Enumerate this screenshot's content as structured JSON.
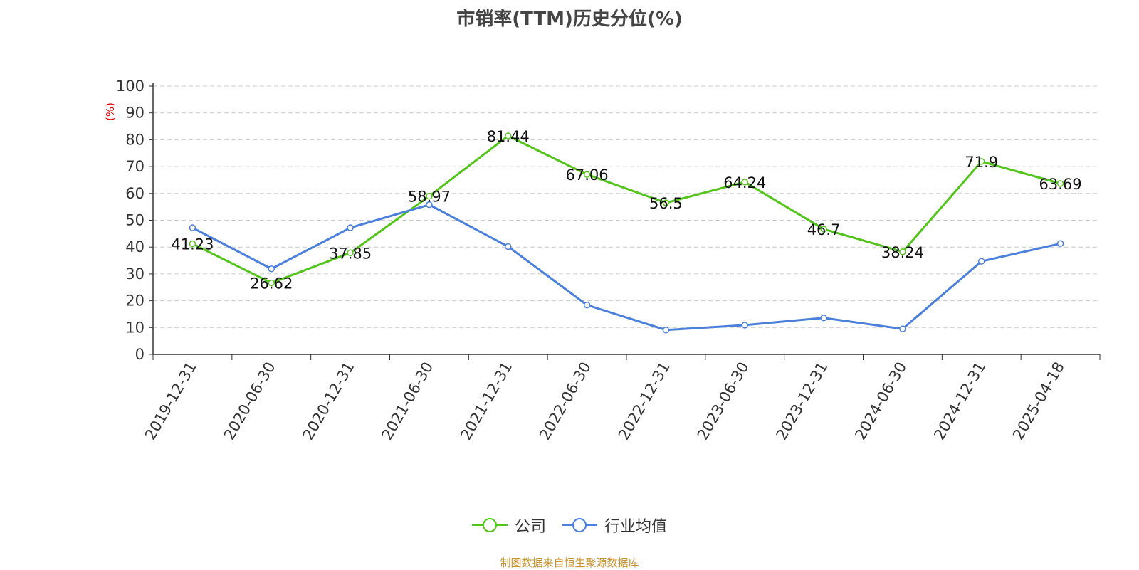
{
  "chart_data": {
    "type": "line",
    "title": "市销率(TTM)历史分位(%)",
    "ylabel": "(%)",
    "xlabel": "",
    "ylim": [
      0,
      100
    ],
    "yticks": [
      0,
      10,
      20,
      30,
      40,
      50,
      60,
      70,
      80,
      90,
      100
    ],
    "grid": true,
    "legend_position": "bottom-center",
    "categories": [
      "2019-12-31",
      "2020-06-30",
      "2020-12-31",
      "2021-06-30",
      "2021-12-31",
      "2022-06-30",
      "2022-12-31",
      "2023-06-30",
      "2023-12-31",
      "2024-06-30",
      "2024-12-31",
      "2025-04-18"
    ],
    "series": [
      {
        "name": "公司",
        "color": "#52c41a",
        "values": [
          41.23,
          26.62,
          37.85,
          58.97,
          81.44,
          67.06,
          56.5,
          64.24,
          46.7,
          38.24,
          71.9,
          63.69
        ],
        "labels": [
          "41.23",
          "26.62",
          "37.85",
          "58.97",
          "81.44",
          "67.06",
          "56.5",
          "64.24",
          "46.7",
          "38.24",
          "71.9",
          "63.69"
        ]
      },
      {
        "name": "行业均值",
        "color": "#4a7fdc",
        "values": [
          47.2,
          31.9,
          47.2,
          55.8,
          40.2,
          18.4,
          9.1,
          10.9,
          13.6,
          9.5,
          34.7,
          41.3
        ]
      }
    ]
  },
  "source": "制图数据来自恒生聚源数据库",
  "colors": {
    "ylabel": "#e00000",
    "axis": "#333333",
    "grid": "#cccccc"
  }
}
